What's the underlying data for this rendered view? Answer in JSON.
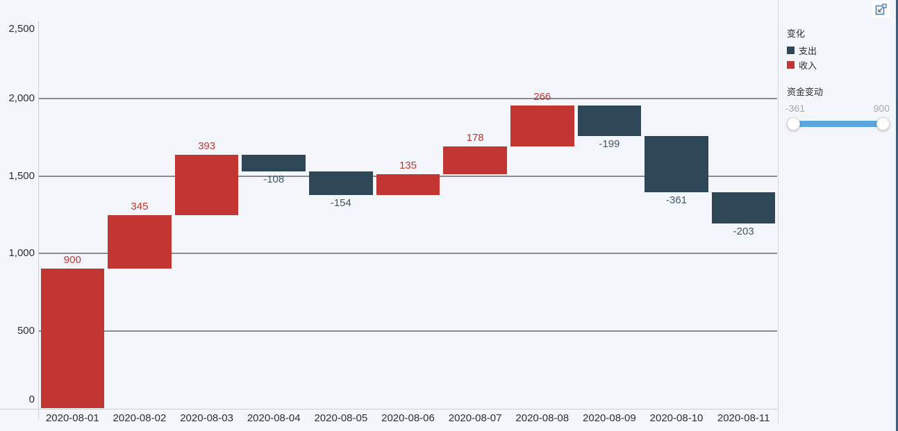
{
  "chart_data": {
    "type": "bar",
    "subtype": "waterfall",
    "title": "",
    "categories": [
      "2020-08-01",
      "2020-08-02",
      "2020-08-03",
      "2020-08-04",
      "2020-08-05",
      "2020-08-06",
      "2020-08-07",
      "2020-08-08",
      "2020-08-09",
      "2020-08-10",
      "2020-08-11"
    ],
    "values": [
      900,
      345,
      393,
      -108,
      -154,
      135,
      178,
      266,
      -199,
      -361,
      -203
    ],
    "running_start": [
      0,
      900,
      1245,
      1638,
      1530,
      1376,
      1511,
      1689,
      1955,
      1756,
      1395
    ],
    "running_end": [
      900,
      1245,
      1638,
      1530,
      1376,
      1511,
      1689,
      1955,
      1756,
      1395,
      1192
    ],
    "data_labels": [
      "900",
      "345",
      "393",
      "-108",
      "-154",
      "135",
      "178",
      "266",
      "-199",
      "-361",
      "-203"
    ],
    "ylim": [
      0,
      2500
    ],
    "y_ticks": [
      {
        "value": 0,
        "label": "0"
      },
      {
        "value": 500,
        "label": "500"
      },
      {
        "value": 1000,
        "label": "1,000"
      },
      {
        "value": 1500,
        "label": "1,500"
      },
      {
        "value": 2000,
        "label": "2,000"
      },
      {
        "value": 2500,
        "label": "2,500"
      }
    ],
    "gridline_values": [
      500,
      1000,
      1500,
      2000
    ],
    "grid": true,
    "legend_position": "right",
    "colors": {
      "increase": "#c23631",
      "decrease": "#2e4858",
      "increase_label": "#c23631",
      "decrease_label": "#43566a",
      "gridline": "#878b90",
      "axis_line": "#c9cdd3",
      "tick_text": "#2e2e2e"
    }
  },
  "legend": {
    "title": "变化",
    "items": [
      {
        "label": "支出",
        "color": "#2e4858"
      },
      {
        "label": "收入",
        "color": "#c23631"
      }
    ]
  },
  "slider": {
    "title": "资金变动",
    "min_label": "-361",
    "max_label": "900",
    "track_color": "#5ca6e0"
  },
  "chrome": {
    "focus_icon": "focus-mode-icon",
    "icon_color": "#4f7fae",
    "arrow_color": "#6b6f73",
    "edge_strip_color": "#3c5c83"
  }
}
